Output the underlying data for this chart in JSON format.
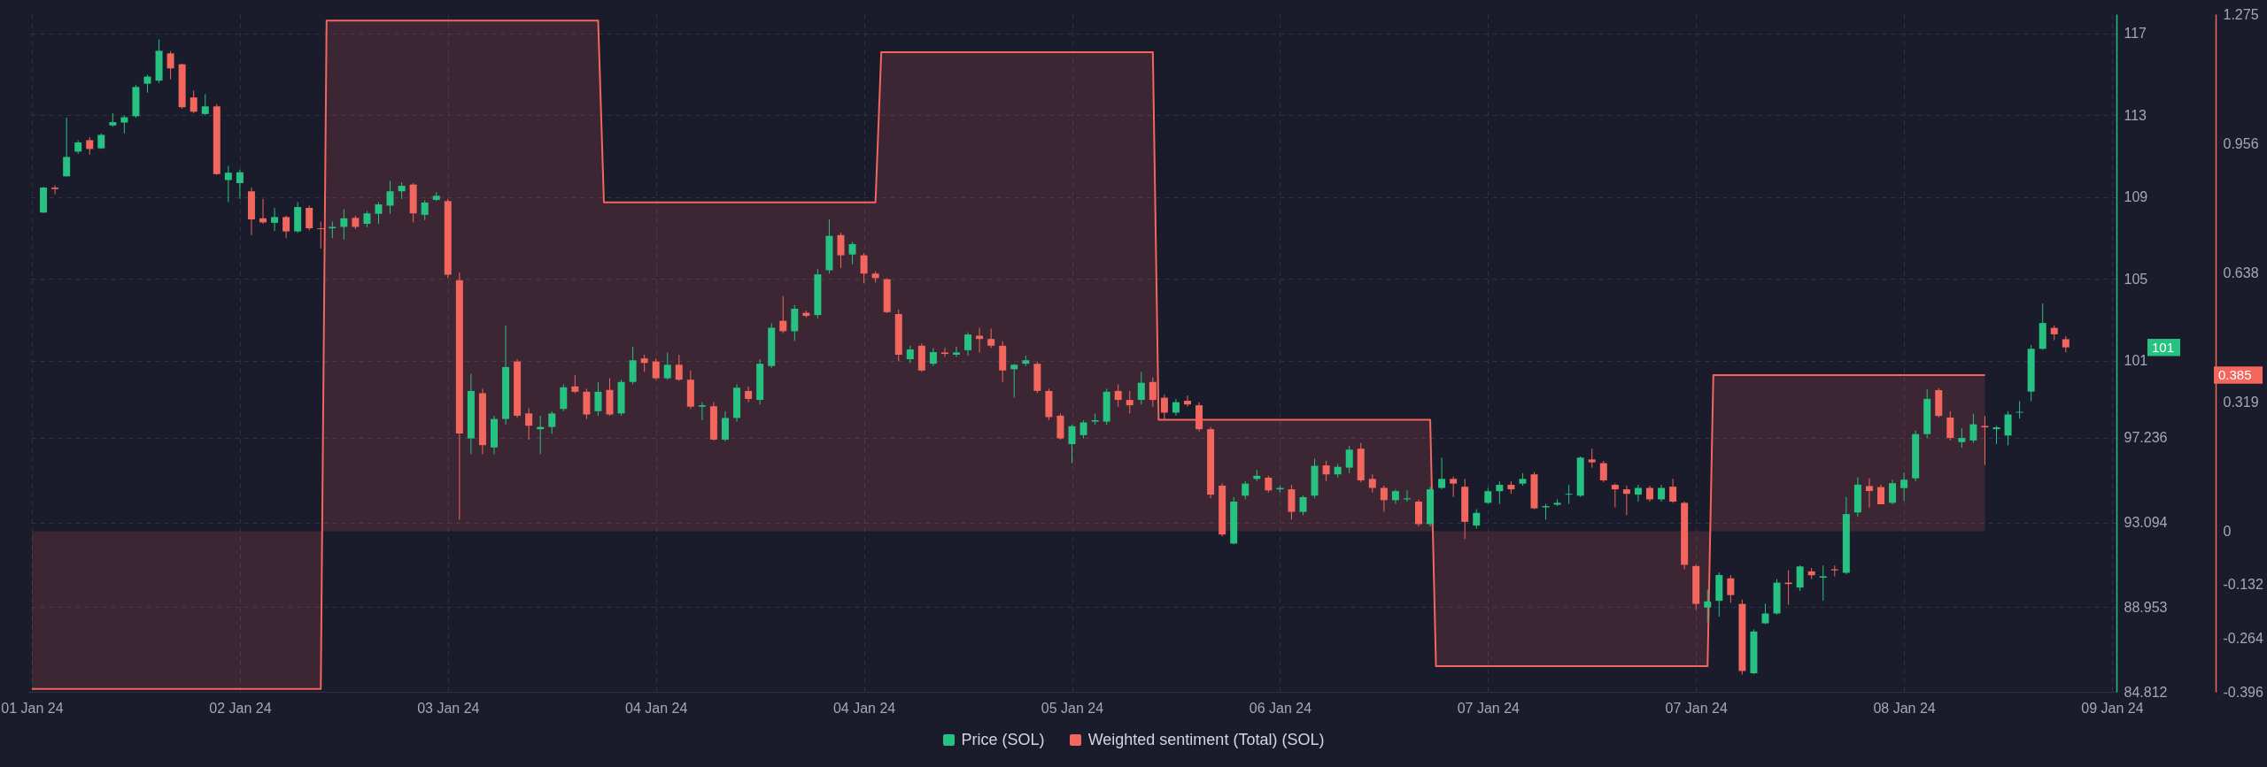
{
  "chart_data": {
    "type": "candlestick",
    "x": [
      "--01-01T19:00",
      "--01-01T20:00",
      "--01-01T21:00",
      "--01-01T22:00",
      "--01-01T23:00",
      "--01-02T00:00",
      "--01-02T01:00",
      "--01-02T02:00",
      "--01-02T03:00",
      "--01-02T04:00",
      "--01-02T05:00",
      "--01-02T06:00",
      "--01-02T07:00",
      "--01-02T08:00",
      "--01-02T09:00",
      "--01-02T10:00",
      "--01-02T11:00",
      "--01-02T12:00",
      "--01-02T13:00",
      "--01-02T14:00",
      "--01-02T15:00",
      "--01-02T16:00",
      "--01-02T17:00",
      "--01-02T18:00",
      "--01-02T19:00",
      "--01-02T20:00",
      "--01-02T21:00",
      "--01-02T22:00",
      "--01-02T23:00",
      "--01-03T00:00",
      "--01-03T01:00",
      "--01-03T02:00",
      "--01-03T03:00",
      "--01-03T04:00",
      "--01-03T05:00",
      "--01-03T06:00",
      "--01-03T07:00",
      "--01-03T08:00",
      "--01-03T09:00",
      "--01-03T10:00",
      "--01-03T11:00",
      "--01-03T12:00",
      "--01-03T13:00",
      "--01-03T14:00",
      "--01-03T15:00",
      "--01-03T16:00",
      "--01-03T17:00",
      "--01-03T18:00",
      "--01-03T19:00",
      "--01-03T20:00",
      "--01-03T21:00",
      "--01-03T22:00",
      "--01-03T23:00",
      "--01-04T00:00",
      "--01-04T01:00",
      "--01-04T02:00",
      "--01-04T03:00",
      "--01-04T04:00",
      "--01-04T05:00",
      "--01-04T06:00",
      "--01-04T07:00",
      "--01-04T08:00",
      "--01-04T09:00",
      "--01-04T10:00",
      "--01-04T11:00",
      "--01-04T12:00",
      "--01-04T13:00",
      "--01-04T14:00",
      "--01-04T15:00",
      "--01-04T16:00",
      "--01-04T17:00",
      "--01-04T18:00",
      "--01-04T19:00",
      "--01-04T20:00",
      "--01-04T21:00",
      "--01-04T22:00",
      "--01-04T23:00",
      "--01-05T00:00",
      "--01-05T01:00",
      "--01-05T02:00",
      "--01-05T03:00",
      "--01-05T04:00",
      "--01-05T05:00",
      "--01-05T06:00",
      "--01-05T07:00",
      "--01-05T08:00",
      "--01-05T09:00",
      "--01-05T10:00",
      "--01-05T11:00",
      "--01-05T12:00",
      "--01-05T13:00",
      "--01-05T14:00",
      "--01-05T15:00",
      "--01-05T16:00",
      "--01-05T17:00",
      "--01-05T18:00",
      "--01-05T19:00",
      "--01-05T20:00",
      "--01-05T21:00",
      "--01-05T22:00",
      "--01-05T23:00",
      "--01-06T00:00",
      "--01-06T01:00",
      "--01-06T02:00",
      "--01-06T03:00",
      "--01-06T04:00",
      "--01-06T05:00",
      "--01-06T06:00",
      "--01-06T07:00",
      "--01-06T08:00",
      "--01-06T09:00",
      "--01-06T10:00",
      "--01-06T11:00",
      "--01-06T12:00",
      "--01-06T13:00",
      "--01-06T14:00",
      "--01-06T15:00",
      "--01-06T16:00",
      "--01-06T17:00",
      "--01-06T18:00",
      "--01-06T19:00",
      "--01-06T20:00",
      "--01-06T21:00",
      "--01-06T22:00",
      "--01-06T23:00",
      "--01-07T00:00",
      "--01-07T01:00",
      "--01-07T02:00",
      "--01-07T03:00",
      "--01-07T04:00",
      "--01-07T05:00",
      "--01-07T06:00",
      "--01-07T07:00",
      "--01-07T08:00",
      "--01-07T09:00",
      "--01-07T10:00",
      "--01-07T11:00",
      "--01-07T12:00",
      "--01-07T13:00",
      "--01-07T14:00",
      "--01-07T15:00",
      "--01-07T16:00",
      "--01-07T17:00",
      "--01-07T18:00",
      "--01-07T19:00",
      "--01-07T20:00",
      "--01-07T21:00",
      "--01-07T22:00",
      "--01-07T23:00",
      "--01-08T00:00",
      "--01-08T01:00",
      "--01-08T02:00",
      "--01-08T03:00",
      "--01-08T04:00",
      "--01-08T05:00",
      "--01-08T06:00",
      "--01-08T07:00",
      "--01-08T08:00",
      "--01-08T09:00",
      "--01-08T10:00",
      "--01-08T11:00",
      "--01-08T12:00",
      "--01-08T13:00",
      "--01-08T14:00",
      "--01-08T15:00",
      "--01-08T16:00",
      "--01-08T17:00",
      "--01-08T18:00",
      "--01-08T19:00",
      "--01-08T20:00",
      "--01-08T21:00",
      "--01-08T22:00",
      "--01-08T23:00",
      "--01-09T00:00",
      "--01-09T01:00",
      "--01-09T02:00"
    ],
    "series": [
      {
        "name": "Price (SOL)",
        "type": "candlestick",
        "color": "#26c281",
        "ohlc": [
          [
            108.24,
            109.5,
            108.22,
            109.46
          ],
          [
            109.46,
            109.57,
            109.13,
            109.39
          ],
          [
            110.01,
            112.88,
            110.01,
            110.96
          ],
          [
            111.22,
            111.78,
            111.11,
            111.67
          ],
          [
            111.78,
            111.93,
            111.07,
            111.35
          ],
          [
            111.38,
            112.11,
            111.35,
            112.04
          ],
          [
            112.5,
            113.1,
            112.44,
            112.66
          ],
          [
            112.64,
            112.99,
            112.11,
            112.9
          ],
          [
            112.95,
            114.49,
            112.88,
            114.38
          ],
          [
            114.54,
            114.98,
            114.1,
            114.89
          ],
          [
            114.69,
            116.7,
            114.58,
            116.15
          ],
          [
            116.02,
            116.13,
            114.76,
            115.29
          ],
          [
            115.49,
            115.53,
            113.32,
            113.39
          ],
          [
            113.87,
            114.2,
            113.1,
            113.17
          ],
          [
            113.06,
            114.03,
            112.99,
            113.43
          ],
          [
            113.43,
            113.54,
            110.08,
            110.12
          ],
          [
            109.83,
            110.52,
            108.75,
            110.19
          ],
          [
            109.68,
            110.34,
            108.91,
            110.21
          ],
          [
            109.28,
            109.46,
            107.14,
            107.91
          ],
          [
            107.96,
            108.91,
            107.69,
            107.76
          ],
          [
            107.74,
            108.47,
            107.34,
            108.02
          ],
          [
            108.02,
            108.09,
            106.99,
            107.32
          ],
          [
            107.32,
            108.75,
            107.25,
            108.51
          ],
          [
            108.47,
            108.58,
            107.36,
            107.47
          ],
          [
            107.47,
            107.8,
            106.48,
            107.43
          ],
          [
            107.47,
            107.8,
            106.99,
            107.54
          ],
          [
            107.54,
            108.4,
            106.92,
            107.96
          ],
          [
            107.98,
            108.09,
            107.43,
            107.54
          ],
          [
            107.69,
            108.31,
            107.52,
            108.2
          ],
          [
            108.18,
            108.75,
            107.69,
            108.64
          ],
          [
            108.58,
            109.79,
            108.18,
            109.28
          ],
          [
            109.28,
            109.72,
            108.91,
            109.55
          ],
          [
            109.61,
            109.68,
            107.76,
            108.2
          ],
          [
            108.13,
            108.84,
            107.87,
            108.73
          ],
          [
            108.86,
            109.24,
            108.8,
            109.06
          ],
          [
            108.8,
            108.91,
            105.04,
            105.2
          ],
          [
            104.93,
            105.31,
            93.23,
            97.44
          ],
          [
            97.2,
            100.36,
            96.43,
            99.52
          ],
          [
            99.41,
            99.63,
            96.43,
            96.87
          ],
          [
            96.76,
            98.31,
            96.43,
            98.15
          ],
          [
            98.15,
            102.72,
            97.87,
            100.69
          ],
          [
            100.96,
            101.07,
            98.2,
            98.31
          ],
          [
            98.42,
            98.68,
            97.14,
            97.82
          ],
          [
            97.65,
            98.31,
            96.43,
            97.76
          ],
          [
            97.76,
            98.53,
            97.43,
            98.42
          ],
          [
            98.64,
            99.85,
            98.53,
            99.7
          ],
          [
            99.74,
            100.3,
            99.41,
            99.48
          ],
          [
            99.48,
            99.63,
            98.15,
            98.37
          ],
          [
            98.53,
            99.96,
            98.31,
            99.48
          ],
          [
            99.57,
            100.14,
            98.31,
            98.37
          ],
          [
            98.42,
            100.07,
            98.31,
            99.96
          ],
          [
            99.96,
            101.69,
            99.85,
            101.02
          ],
          [
            101.11,
            101.29,
            100.45,
            100.89
          ],
          [
            100.96,
            101.11,
            100.07,
            100.14
          ],
          [
            100.14,
            101.4,
            100.07,
            100.8
          ],
          [
            100.8,
            101.29,
            100.01,
            100.07
          ],
          [
            100.07,
            100.52,
            98.64,
            98.75
          ],
          [
            98.75,
            98.97,
            98.09,
            98.82
          ],
          [
            98.77,
            98.97,
            97.09,
            97.14
          ],
          [
            97.14,
            98.53,
            97.05,
            98.2
          ],
          [
            98.2,
            99.85,
            98.02,
            99.68
          ],
          [
            99.52,
            99.74,
            98.97,
            99.13
          ],
          [
            99.08,
            101.07,
            98.86,
            100.85
          ],
          [
            100.74,
            102.83,
            100.63,
            102.61
          ],
          [
            102.95,
            104.16,
            102.35,
            102.44
          ],
          [
            102.44,
            103.72,
            101.96,
            103.54
          ],
          [
            103.34,
            103.45,
            103.1,
            103.19
          ],
          [
            103.23,
            105.48,
            103.06,
            105.22
          ],
          [
            105.42,
            107.91,
            105.26,
            107.1
          ],
          [
            107.14,
            107.25,
            105.53,
            106.15
          ],
          [
            106.19,
            106.81,
            105.71,
            106.7
          ],
          [
            106.15,
            106.26,
            104.78,
            105.26
          ],
          [
            105.26,
            105.37,
            104.82,
            105.04
          ],
          [
            104.98,
            105.04,
            103.32,
            103.37
          ],
          [
            103.28,
            103.5,
            100.96,
            101.29
          ],
          [
            101.07,
            101.73,
            100.89,
            101.55
          ],
          [
            101.73,
            101.84,
            100.45,
            100.52
          ],
          [
            100.85,
            101.62,
            100.74,
            101.42
          ],
          [
            101.4,
            101.62,
            101.18,
            101.33
          ],
          [
            101.29,
            101.69,
            101.18,
            101.4
          ],
          [
            101.51,
            102.39,
            101.24,
            102.28
          ],
          [
            102.22,
            102.61,
            101.4,
            102.06
          ],
          [
            102.06,
            102.57,
            101.62,
            101.73
          ],
          [
            101.73,
            101.95,
            99.96,
            100.52
          ],
          [
            100.58,
            100.85,
            99.19,
            100.8
          ],
          [
            100.85,
            101.25,
            100.74,
            101.02
          ],
          [
            100.85,
            100.96,
            99.41,
            99.52
          ],
          [
            99.52,
            99.63,
            98.09,
            98.24
          ],
          [
            98.31,
            98.42,
            97.14,
            97.2
          ],
          [
            96.92,
            97.87,
            95.99,
            97.8
          ],
          [
            97.36,
            98.09,
            97.2,
            97.98
          ],
          [
            98.02,
            98.42,
            97.87,
            98.09
          ],
          [
            98.02,
            99.63,
            97.87,
            99.48
          ],
          [
            99.52,
            99.85,
            98.75,
            99.08
          ],
          [
            99.08,
            99.52,
            98.42,
            98.82
          ],
          [
            99.08,
            100.45,
            98.86,
            99.92
          ],
          [
            99.96,
            100.18,
            98.75,
            99.08
          ],
          [
            99.19,
            99.35,
            98.09,
            98.46
          ],
          [
            98.46,
            99.13,
            98.31,
            98.97
          ],
          [
            99.04,
            99.3,
            98.75,
            98.86
          ],
          [
            98.82,
            98.97,
            97.54,
            97.65
          ],
          [
            97.65,
            97.76,
            94.27,
            94.45
          ],
          [
            94.89,
            95.0,
            92.41,
            92.5
          ],
          [
            92.06,
            94.33,
            92.02,
            94.11
          ],
          [
            94.4,
            95.11,
            94.22,
            94.99
          ],
          [
            95.22,
            95.66,
            95.11,
            95.37
          ],
          [
            95.28,
            95.37,
            94.55,
            94.66
          ],
          [
            94.71,
            94.89,
            94.55,
            94.78
          ],
          [
            94.71,
            94.93,
            93.23,
            93.61
          ],
          [
            93.61,
            94.4,
            93.45,
            94.33
          ],
          [
            94.4,
            96.21,
            94.27,
            95.86
          ],
          [
            95.88,
            96.1,
            95.11,
            95.44
          ],
          [
            95.44,
            95.95,
            95.28,
            95.81
          ],
          [
            95.77,
            96.83,
            95.5,
            96.65
          ],
          [
            96.7,
            96.98,
            95.06,
            95.15
          ],
          [
            95.22,
            95.44,
            94.55,
            94.78
          ],
          [
            94.78,
            94.89,
            93.61,
            94.18
          ],
          [
            94.18,
            94.71,
            94.0,
            94.62
          ],
          [
            94.22,
            94.67,
            94.11,
            94.27
          ],
          [
            94.11,
            94.22,
            92.9,
            93.01
          ],
          [
            93.01,
            94.84,
            92.9,
            94.71
          ],
          [
            94.78,
            96.26,
            94.71,
            95.22
          ],
          [
            95.22,
            95.33,
            94.33,
            94.99
          ],
          [
            94.84,
            95.22,
            92.28,
            93.12
          ],
          [
            92.94,
            93.74,
            92.79,
            93.56
          ],
          [
            94.05,
            94.78,
            94.0,
            94.62
          ],
          [
            94.62,
            95.11,
            94.0,
            94.93
          ],
          [
            94.93,
            95.11,
            94.49,
            94.71
          ],
          [
            94.99,
            95.5,
            94.89,
            95.22
          ],
          [
            95.44,
            95.55,
            93.74,
            93.78
          ],
          [
            93.83,
            94.0,
            93.23,
            93.89
          ],
          [
            93.96,
            94.22,
            93.89,
            94.05
          ],
          [
            94.45,
            94.93,
            94.0,
            94.49
          ],
          [
            94.4,
            96.32,
            94.33,
            96.26
          ],
          [
            96.17,
            96.7,
            95.77,
            96.03
          ],
          [
            95.99,
            96.1,
            95.06,
            95.15
          ],
          [
            94.93,
            95.0,
            93.83,
            94.71
          ],
          [
            94.71,
            94.89,
            93.45,
            94.49
          ],
          [
            94.45,
            94.93,
            94.11,
            94.78
          ],
          [
            94.78,
            94.89,
            94.11,
            94.22
          ],
          [
            94.22,
            94.93,
            94.11,
            94.78
          ],
          [
            94.84,
            95.22,
            94.05,
            94.11
          ],
          [
            94.05,
            94.11,
            90.8,
            91.02
          ],
          [
            90.96,
            91.02,
            88.82,
            89.11
          ],
          [
            88.93,
            89.81,
            88.22,
            89.23
          ],
          [
            89.26,
            90.65,
            88.48,
            90.52
          ],
          [
            90.36,
            90.52,
            89.15,
            89.54
          ],
          [
            89.11,
            89.32,
            85.66,
            85.83
          ],
          [
            85.72,
            87.87,
            85.67,
            87.76
          ],
          [
            88.16,
            89.12,
            88.12,
            88.64
          ],
          [
            88.64,
            90.32,
            88.59,
            90.15
          ],
          [
            90.15,
            90.75,
            89.07,
            90.08
          ],
          [
            89.91,
            90.99,
            89.74,
            90.94
          ],
          [
            90.7,
            90.87,
            90.32,
            90.51
          ],
          [
            90.39,
            90.99,
            89.27,
            90.46
          ],
          [
            90.8,
            90.99,
            90.46,
            90.75
          ],
          [
            90.63,
            94.34,
            90.56,
            93.5
          ],
          [
            93.58,
            95.3,
            93.38,
            94.94
          ],
          [
            94.87,
            95.25,
            93.82,
            94.63
          ],
          [
            94.82,
            94.94,
            93.98,
            93.98
          ],
          [
            94.05,
            95.18,
            93.98,
            95.01
          ],
          [
            94.77,
            95.54,
            94.15,
            95.18
          ],
          [
            95.25,
            97.58,
            95.11,
            97.41
          ],
          [
            97.41,
            99.61,
            97.22,
            99.13
          ],
          [
            99.56,
            99.66,
            98.22,
            98.3
          ],
          [
            98.22,
            98.53,
            97.1,
            97.22
          ],
          [
            97.02,
            97.7,
            96.74,
            97.22
          ],
          [
            97.1,
            98.41,
            96.98,
            97.89
          ],
          [
            97.81,
            98.29,
            95.9,
            97.74
          ],
          [
            97.65,
            97.81,
            96.93,
            97.74
          ],
          [
            97.34,
            98.53,
            96.86,
            98.37
          ],
          [
            98.46,
            99.02,
            98.17,
            98.5
          ],
          [
            99.49,
            101.77,
            99.02,
            101.58
          ],
          [
            101.58,
            103.8,
            101.53,
            102.84
          ],
          [
            102.6,
            102.72,
            102.0,
            102.29
          ],
          [
            102.05,
            102.2,
            101.41,
            101.65
          ]
        ],
        "colors": [
          "#26c281",
          "#f2665d",
          "#26c281",
          "#26c281",
          "#f2665d",
          "#26c281",
          "#26c281",
          "#26c281",
          "#26c281",
          "#26c281",
          "#26c281",
          "#f2665d",
          "#f2665d",
          "#f2665d",
          "#26c281",
          "#f2665d",
          "#26c281",
          "#26c281",
          "#f2665d",
          "#f2665d",
          "#26c281",
          "#f2665d",
          "#26c281",
          "#f2665d",
          "#f2665d",
          "#26c281",
          "#26c281",
          "#f2665d",
          "#26c281",
          "#26c281",
          "#26c281",
          "#26c281",
          "#f2665d",
          "#26c281",
          "#26c281",
          "#f2665d",
          "#f2665d",
          "#26c281",
          "#f2665d",
          "#26c281",
          "#26c281",
          "#f2665d",
          "#f2665d",
          "#26c281",
          "#26c281",
          "#26c281",
          "#f2665d",
          "#f2665d",
          "#26c281",
          "#f2665d",
          "#26c281",
          "#26c281",
          "#f2665d",
          "#f2665d",
          "#26c281",
          "#f2665d",
          "#f2665d",
          "#26c281",
          "#f2665d",
          "#26c281",
          "#26c281",
          "#f2665d",
          "#26c281",
          "#26c281",
          "#f2665d",
          "#26c281",
          "#f2665d",
          "#26c281",
          "#26c281",
          "#f2665d",
          "#26c281",
          "#f2665d",
          "#f2665d",
          "#f2665d",
          "#f2665d",
          "#26c281",
          "#f2665d",
          "#26c281",
          "#f2665d",
          "#26c281",
          "#26c281",
          "#f2665d",
          "#f2665d",
          "#f2665d",
          "#26c281",
          "#26c281",
          "#f2665d",
          "#f2665d",
          "#f2665d",
          "#26c281",
          "#26c281",
          "#26c281",
          "#26c281",
          "#f2665d",
          "#f2665d",
          "#26c281",
          "#f2665d",
          "#f2665d",
          "#26c281",
          "#f2665d",
          "#f2665d",
          "#f2665d",
          "#f2665d",
          "#26c281",
          "#26c281",
          "#26c281",
          "#f2665d",
          "#26c281",
          "#f2665d",
          "#26c281",
          "#26c281",
          "#f2665d",
          "#26c281",
          "#26c281",
          "#f2665d",
          "#f2665d",
          "#f2665d",
          "#26c281",
          "#26c281",
          "#f2665d",
          "#26c281",
          "#26c281",
          "#f2665d",
          "#f2665d",
          "#26c281",
          "#26c281",
          "#26c281",
          "#f2665d",
          "#26c281",
          "#f2665d",
          "#26c281",
          "#26c281",
          "#26c281",
          "#26c281",
          "#f2665d",
          "#f2665d",
          "#f2665d",
          "#f2665d",
          "#26c281",
          "#f2665d",
          "#26c281",
          "#f2665d",
          "#f2665d",
          "#f2665d",
          "#26c281",
          "#26c281",
          "#f2665d",
          "#f2665d",
          "#26c281",
          "#26c281",
          "#26c281",
          "#f2665d",
          "#26c281",
          "#f2665d",
          "#26c281",
          "#f2665d",
          "#26c281",
          "#26c281",
          "#f2665d",
          "#f2665d",
          "#26c281",
          "#26c281",
          "#26c281",
          "#26c281",
          "#f2665d",
          "#f2665d",
          "#26c281",
          "#26c281",
          "#f2665d",
          "#26c281",
          "#26c281",
          "#26c281",
          "#26c281",
          "#26c281",
          "#f2665d",
          "#f2665d"
        ]
      },
      {
        "name": "Weighted sentiment (Total) (SOL)",
        "type": "area",
        "axis": "y2",
        "color": "#f2665d",
        "x": [
          "--01-01T18:00",
          "--01-02T19:00",
          "--01-02T19:30",
          "--01-03T19:00",
          "--01-03T19:30",
          "--01-04T19:00",
          "--01-04T19:30",
          "--01-05T19:00",
          "--01-05T19:30",
          "--01-06T19:00",
          "--01-06T19:30",
          "--01-07T19:00",
          "--01-07T19:30",
          "--01-08T19:00"
        ],
        "values": [
          -0.389,
          -0.389,
          1.259,
          1.259,
          0.811,
          0.811,
          1.181,
          1.181,
          0.275,
          0.275,
          -0.333,
          -0.333,
          0.385,
          0.385
        ]
      }
    ],
    "annotations": [
      "101",
      "0.385"
    ],
    "xlim": [
      "--01-01T18:00",
      "--01-09T06:00"
    ],
    "xticks": [
      {
        "value": "--01-01T18:00",
        "label": "01 Jan 24"
      },
      {
        "value": "--01-02T12:00",
        "label": "02 Jan 24"
      },
      {
        "value": "--01-03T06:00",
        "label": "03 Jan 24"
      },
      {
        "value": "--01-04T00:00",
        "label": "04 Jan 24"
      },
      {
        "value": "--01-04T18:00",
        "label": "04 Jan 24"
      },
      {
        "value": "--01-05T12:00",
        "label": "05 Jan 24"
      },
      {
        "value": "--01-06T06:00",
        "label": "06 Jan 24"
      },
      {
        "value": "--01-07T00:00",
        "label": "07 Jan 24"
      },
      {
        "value": "--01-07T18:00",
        "label": "07 Jan 24"
      },
      {
        "value": "--01-08T12:00",
        "label": "08 Jan 24"
      },
      {
        "value": "--01-09T06:00",
        "label": "09 Jan 24"
      }
    ],
    "ylim": [
      84.812,
      117.94
    ],
    "yticks": [
      84.812,
      88.953,
      93.094,
      97.236,
      101,
      105,
      109,
      113,
      117
    ],
    "y2lim": [
      -0.396,
      1.275
    ],
    "y2ticks": [
      -0.396,
      -0.264,
      -0.132,
      0,
      0.319,
      0.638,
      0.956,
      1.275
    ],
    "grid": true,
    "legend": "bottom"
  }
}
